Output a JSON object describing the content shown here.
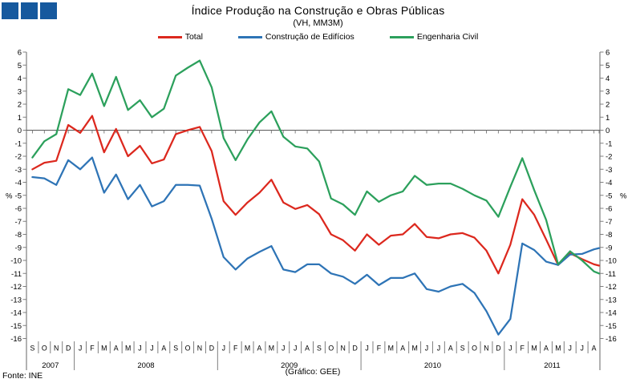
{
  "header": {
    "title": "Índice Produção na Construção e Obras Públicas",
    "subtitle": "(VH, MM3M)"
  },
  "legend": [
    {
      "label": "Total",
      "color": "#DC281E"
    },
    {
      "label": "Construção de Edifícios",
      "color": "#2E74B6"
    },
    {
      "label": "Engenharia Civil",
      "color": "#2CA05C"
    }
  ],
  "footer": {
    "source": "Fonte: INE",
    "credit": "(Gráfico: GEE)"
  },
  "logo_color": "#16599E",
  "axis": {
    "y_max": 6,
    "y_min": -16,
    "y_step": 1,
    "unit_label": "%",
    "unit_row_value": -5
  },
  "chart_data": {
    "type": "line",
    "title": "Índice Produção na Construção e Obras Públicas",
    "subtitle": "(VH, MM3M)",
    "ylabel": "%",
    "ylim": [
      -16,
      6
    ],
    "grid": false,
    "legend_position": "top",
    "x_labels": [
      "S",
      "O",
      "N",
      "D",
      "J",
      "F",
      "M",
      "A",
      "M",
      "J",
      "J",
      "A",
      "S",
      "O",
      "N",
      "D",
      "J",
      "F",
      "M",
      "A",
      "M",
      "J",
      "J",
      "A",
      "S",
      "O",
      "N",
      "D",
      "J",
      "F",
      "M",
      "A",
      "M",
      "J",
      "J",
      "A",
      "S",
      "O",
      "N",
      "D",
      "J",
      "F",
      "M",
      "A",
      "M",
      "J",
      "J",
      "A",
      ""
    ],
    "years": [
      {
        "label": "2007",
        "months": 4
      },
      {
        "label": "2008",
        "months": 12
      },
      {
        "label": "2009",
        "months": 12
      },
      {
        "label": "2010",
        "months": 12
      },
      {
        "label": "2011",
        "months": 8
      }
    ],
    "series": [
      {
        "name": "Total",
        "color": "#DC281E",
        "values": [
          -3.0,
          -2.5,
          -2.35,
          0.4,
          -0.2,
          1.1,
          -1.7,
          0.1,
          -2.0,
          -1.2,
          -2.55,
          -2.25,
          -0.3,
          0.0,
          0.25,
          -1.6,
          -5.45,
          -6.5,
          -5.55,
          -4.8,
          -3.8,
          -5.55,
          -6.05,
          -5.75,
          -6.45,
          -8.0,
          -8.45,
          -9.25,
          -8.0,
          -8.8,
          -8.1,
          -8.0,
          -7.2,
          -8.2,
          -8.3,
          -8.0,
          -7.9,
          -8.25,
          -9.25,
          -11.0,
          -8.8,
          -5.3,
          -6.5,
          -8.4,
          -10.35,
          -9.45,
          -9.9,
          -10.3,
          -10.4
        ]
      },
      {
        "name": "Construção de Edifícios",
        "color": "#2E74B6",
        "values": [
          -3.6,
          -3.7,
          -4.2,
          -2.3,
          -3.0,
          -2.1,
          -4.8,
          -3.4,
          -5.3,
          -4.2,
          -5.85,
          -5.45,
          -4.2,
          -4.2,
          -4.25,
          -6.8,
          -9.75,
          -10.7,
          -9.85,
          -9.35,
          -8.9,
          -10.7,
          -10.9,
          -10.3,
          -10.3,
          -11.0,
          -11.25,
          -11.8,
          -11.1,
          -11.9,
          -11.35,
          -11.35,
          -11.0,
          -12.2,
          -12.4,
          -12.0,
          -11.8,
          -12.5,
          -13.9,
          -15.7,
          -14.5,
          -8.7,
          -9.2,
          -10.1,
          -10.35,
          -9.55,
          -9.5,
          -9.15,
          -9.05
        ]
      },
      {
        "name": "Engenharia Civil",
        "color": "#2CA05C",
        "values": [
          -2.1,
          -0.85,
          -0.3,
          3.15,
          2.7,
          4.35,
          1.85,
          4.1,
          1.55,
          2.3,
          1.0,
          1.65,
          4.2,
          4.8,
          5.35,
          3.3,
          -0.6,
          -2.3,
          -0.7,
          0.6,
          1.45,
          -0.5,
          -1.25,
          -1.4,
          -2.4,
          -5.25,
          -5.7,
          -6.5,
          -4.7,
          -5.5,
          -5.0,
          -4.7,
          -3.5,
          -4.2,
          -4.1,
          -4.1,
          -4.5,
          -5.0,
          -5.4,
          -6.65,
          -4.35,
          -2.15,
          -4.6,
          -6.9,
          -10.3,
          -9.3,
          -10.0,
          -10.85,
          -11.0
        ]
      }
    ]
  }
}
